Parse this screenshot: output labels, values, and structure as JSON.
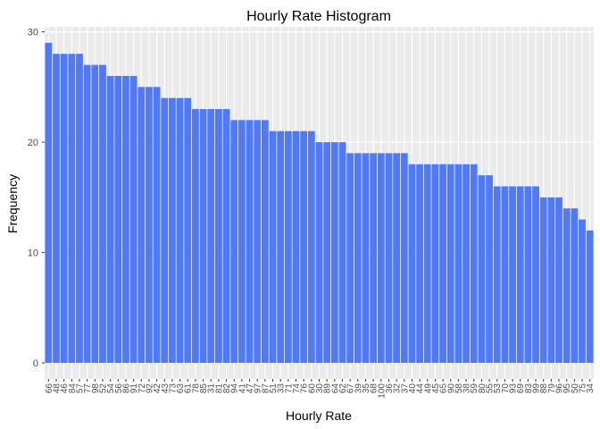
{
  "chart_data": {
    "type": "bar",
    "title": "Hourly Rate Histogram",
    "x_label": "Hourly Rate",
    "y_label": "Frequency",
    "categories": [
      "66",
      "48",
      "46",
      "84",
      "57",
      "77",
      "98",
      "52",
      "54",
      "56",
      "86",
      "91",
      "72",
      "92",
      "42",
      "43",
      "73",
      "63",
      "61",
      "78",
      "85",
      "31",
      "81",
      "82",
      "94",
      "41",
      "47",
      "97",
      "87",
      "51",
      "33",
      "71",
      "74",
      "76",
      "60",
      "30",
      "89",
      "64",
      "62",
      "67",
      "39",
      "35",
      "68",
      "100",
      "36",
      "32",
      "37",
      "40",
      "44",
      "49",
      "45",
      "65",
      "90",
      "58",
      "38",
      "59",
      "80",
      "55",
      "53",
      "70",
      "93",
      "69",
      "83",
      "99",
      "88",
      "79",
      "96",
      "95",
      "50",
      "75",
      "34"
    ],
    "values": [
      29,
      28,
      28,
      28,
      28,
      27,
      27,
      27,
      26,
      26,
      26,
      26,
      25,
      25,
      25,
      24,
      24,
      24,
      24,
      23,
      23,
      23,
      23,
      23,
      22,
      22,
      22,
      22,
      22,
      21,
      21,
      21,
      21,
      21,
      21,
      20,
      20,
      20,
      20,
      19,
      19,
      19,
      19,
      19,
      19,
      19,
      19,
      18,
      18,
      18,
      18,
      18,
      18,
      18,
      18,
      18,
      17,
      17,
      16,
      16,
      16,
      16,
      16,
      16,
      15,
      15,
      15,
      14,
      14,
      13,
      12
    ],
    "color": "#4f79f7",
    "ylim": [
      -1.45,
      30.45
    ],
    "yticks": [
      0,
      10,
      20,
      30
    ],
    "grid": true
  }
}
